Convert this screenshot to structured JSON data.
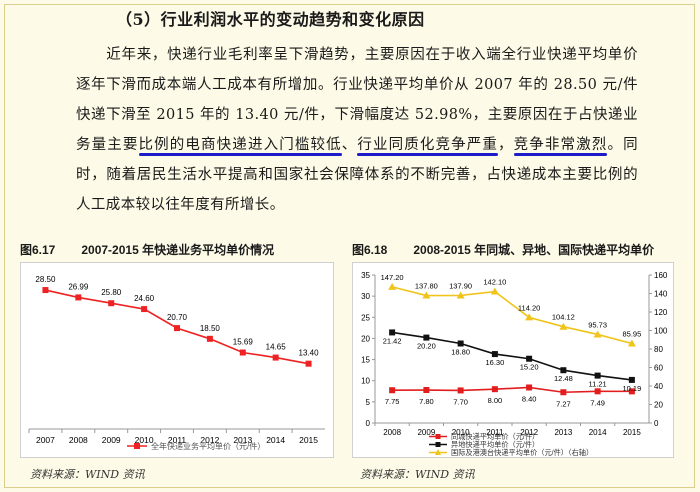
{
  "section_heading": "（5）行业利润水平的变动趋势和变化原因",
  "paragraph": {
    "p1": "近年来，快递行业毛利率呈下滑趋势，主要原因在于收入端全行业快递平均单价逐年下滑而成本端人工成本有所增加。行业快递平均单价从 2007 年的 28.50 元/件快递下滑至 2015 年的 13.40 元/件，下滑幅度达 52.98%，主要原因在于占快递业务量主要",
    "hl1": "比例的电商快递进入门槛较低",
    "sep1": "、",
    "hl2": "行业同质化竞争严重",
    "sep2": "，",
    "hl3": "竞争非常激烈",
    "p2": "。同时，随着居民生活水平提高和国家社会保障体系的不断完善，占快递成本主要比例的人工成本较以往年度有所增长。"
  },
  "figure1": {
    "number": "图6.17",
    "title": "2007-2015 年快递业务平均单价情况",
    "source": "资料来源：WIND 资讯"
  },
  "figure2": {
    "number": "图6.18",
    "title": "2008-2015 年同城、异地、国际快递平均单价",
    "source": "资料来源：WIND 资讯"
  },
  "chart_data": [
    {
      "type": "line",
      "title": "2007-2015 年快递业务平均单价情况",
      "categories": [
        "2007",
        "2008",
        "2009",
        "2010",
        "2011",
        "2012",
        "2013",
        "2014",
        "2015"
      ],
      "series": [
        {
          "name": "全年快递业务平均单价（元/件）",
          "values": [
            28.5,
            26.99,
            25.8,
            24.6,
            20.7,
            18.5,
            15.69,
            14.65,
            13.4
          ],
          "color": "#ee2222"
        }
      ],
      "ylim": [
        0,
        32
      ],
      "grid": false
    },
    {
      "type": "line",
      "title": "2008-2015 年同城、异地、国际快递平均单价",
      "categories": [
        "2008",
        "2009",
        "2010",
        "2011",
        "2012",
        "2013",
        "2014",
        "2015"
      ],
      "series": [
        {
          "name": "同城快递平均单价（元/件）",
          "axis": "left",
          "values": [
            7.75,
            7.8,
            7.7,
            8.0,
            8.4,
            7.27,
            7.49,
            7.48
          ],
          "labels": [
            "7.75",
            "7.80",
            "7.70",
            "8.00",
            "8.40",
            "7.27",
            "7.49",
            ""
          ],
          "color": "#e21d1d",
          "marker": "square"
        },
        {
          "name": "异地快递平均单价（元/件）",
          "axis": "left",
          "values": [
            21.42,
            20.2,
            18.8,
            16.3,
            15.2,
            12.48,
            11.21,
            10.19
          ],
          "labels": [
            "21.42",
            "20.20",
            "18.80",
            "16.30",
            "15.20",
            "12.48",
            "11.21",
            "10.19"
          ],
          "color": "#111111",
          "marker": "square"
        },
        {
          "name": "国际及港澳台快递平均单价（元/件）（右轴）",
          "axis": "right",
          "values": [
            147.2,
            137.8,
            137.9,
            142.1,
            114.2,
            104.12,
            95.73,
            85.95
          ],
          "labels": [
            "147.20",
            "137.80",
            "137.90",
            "142.10",
            "114.20",
            "104.12",
            "95.73",
            "85.95"
          ],
          "color": "#f0c419",
          "marker": "triangle"
        }
      ],
      "left_axis": {
        "ylim": [
          0,
          35
        ],
        "ticks": [
          0,
          5,
          10,
          15,
          20,
          25,
          30,
          35
        ]
      },
      "right_axis": {
        "ylim": [
          0,
          160
        ],
        "ticks": [
          0,
          20,
          40,
          60,
          80,
          100,
          120,
          140,
          160
        ]
      },
      "grid": false
    }
  ]
}
